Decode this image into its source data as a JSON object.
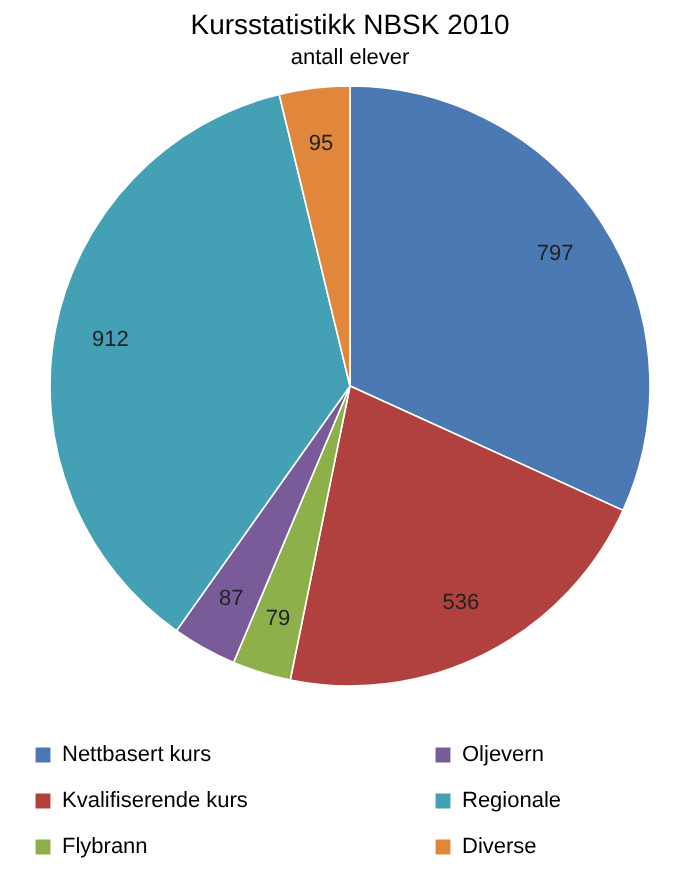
{
  "chart_data": {
    "type": "pie",
    "title": "Kursstatistikk NBSK 2010",
    "subtitle": "antall elever",
    "categories": [
      "Nettbasert kurs",
      "Kvalifiserende kurs",
      "Flybrann",
      "Oljevern",
      "Regionale",
      "Diverse"
    ],
    "values": [
      797,
      536,
      79,
      87,
      912,
      95
    ],
    "colors": [
      "#4a79b4",
      "#b0413e",
      "#8db04b",
      "#7a5b99",
      "#43a0b5",
      "#e1873b"
    ],
    "data_labels": true,
    "legend": "bottom"
  }
}
